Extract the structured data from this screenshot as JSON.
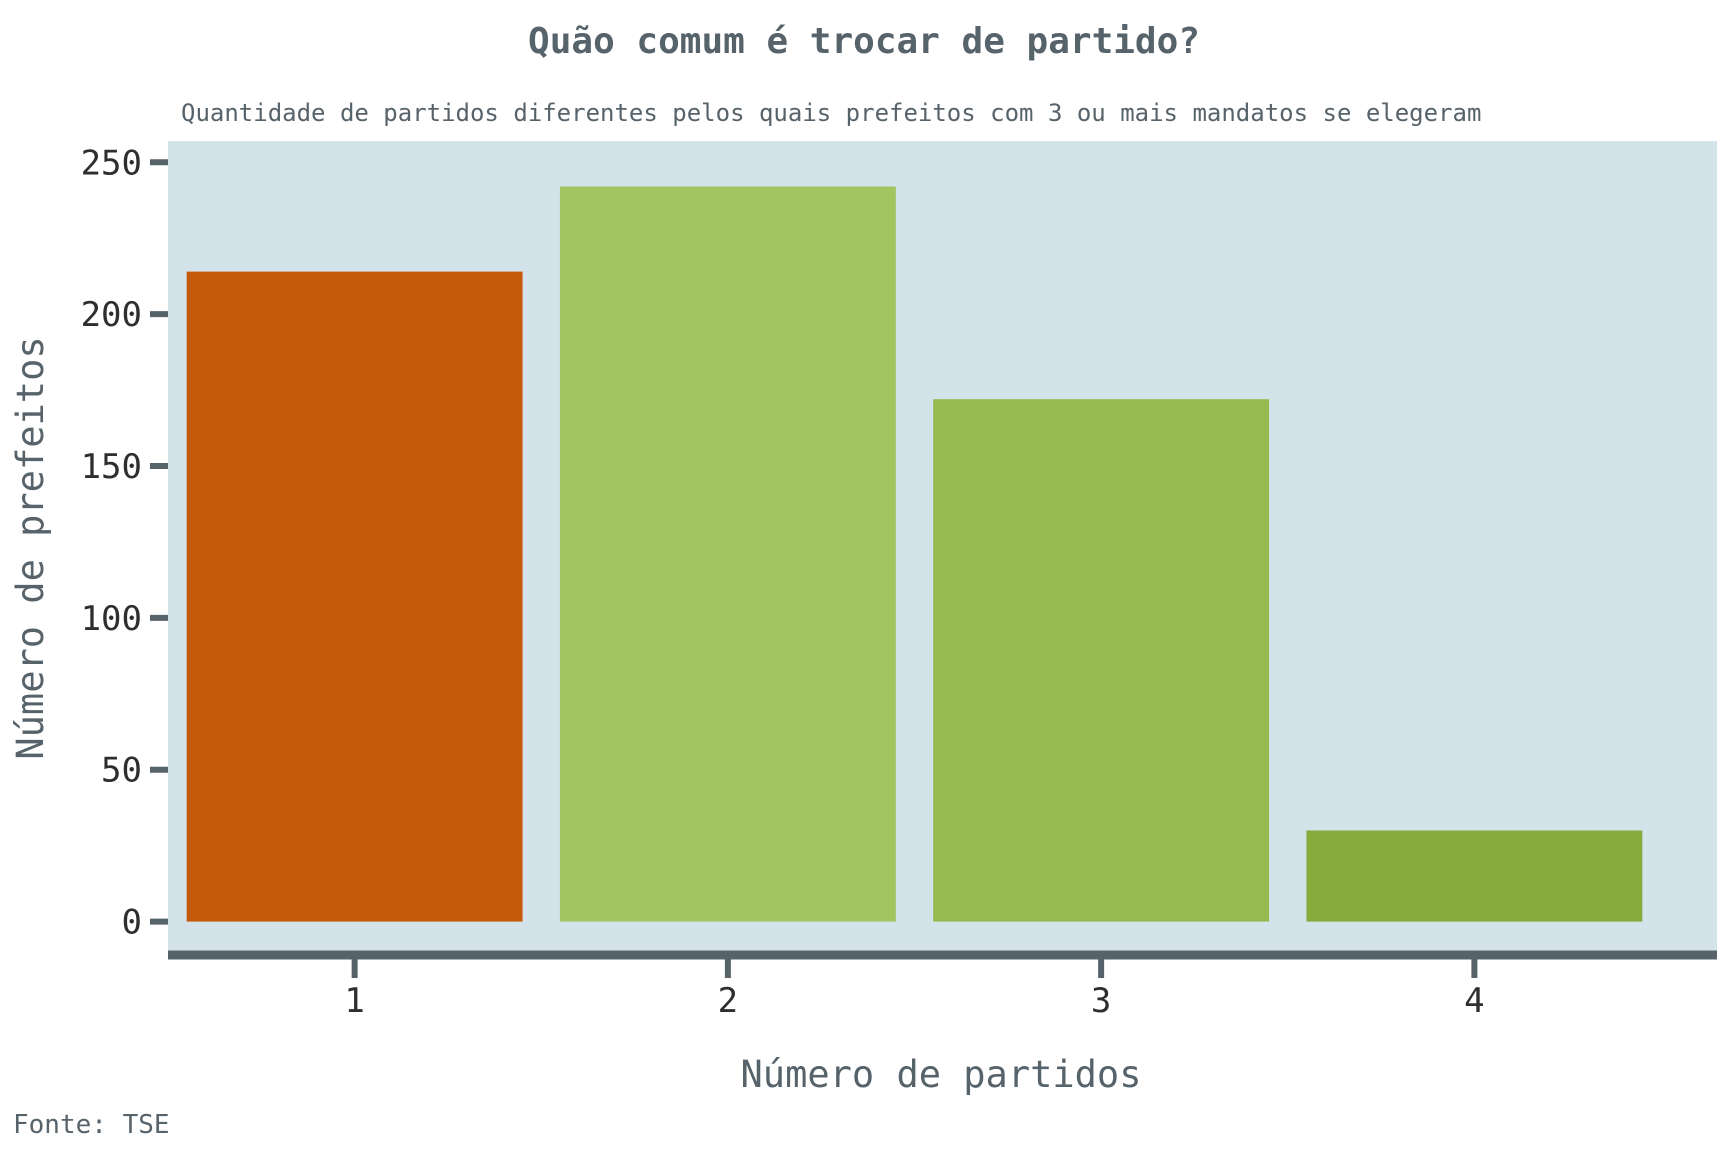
{
  "chart_data": {
    "type": "bar",
    "title": "Quão comum é trocar de partido?",
    "subtitle": "Quantidade de partidos diferentes pelos quais prefeitos com 3 ou mais mandatos se elegeram",
    "xlabel": "Número de partidos",
    "ylabel": "Número de prefeitos",
    "caption": "Fonte: TSE",
    "categories": [
      "1",
      "2",
      "3",
      "4"
    ],
    "values": [
      214,
      242,
      172,
      30
    ],
    "ylim": [
      -11,
      257
    ],
    "yticks": [
      0,
      50,
      100,
      150,
      200,
      250
    ],
    "grid": false,
    "legend": "none",
    "colors": {
      "bars": [
        "#c55a0b",
        "#a4c462",
        "#98b850",
        "#87ab3c"
      ],
      "panel_background": "#d4e3ea",
      "axis": "#57636b",
      "tick_text": "#2e2e2e"
    }
  }
}
